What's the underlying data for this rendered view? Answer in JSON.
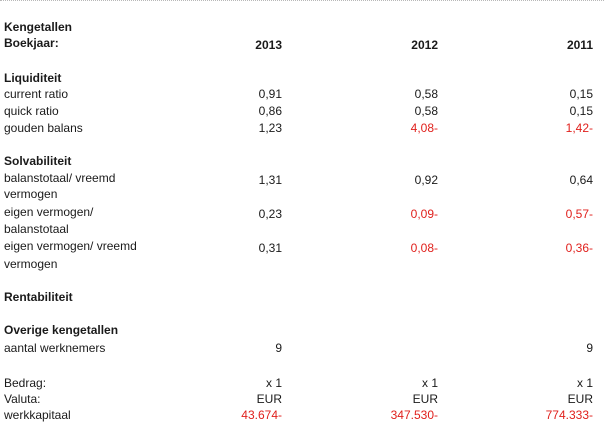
{
  "header": {
    "title": "Kengetallen",
    "year_label": "Boekjaar:",
    "years": [
      "2013",
      "2012",
      "2011"
    ]
  },
  "liquiditeit": {
    "heading": "Liquiditeit",
    "rows": [
      {
        "label": "current ratio",
        "values": [
          "0,91",
          "0,58",
          "0,15"
        ]
      },
      {
        "label": "quick ratio",
        "values": [
          "0,86",
          "0,58",
          "0,15"
        ]
      },
      {
        "label": "gouden balans",
        "values": [
          "1,23",
          "4,08-",
          "1,42-"
        ]
      }
    ]
  },
  "solvabiliteit": {
    "heading": "Solvabiliteit",
    "rows": [
      {
        "label1": "balanstotaal/ vreemd",
        "label2": "vermogen",
        "values": [
          "1,31",
          "0,92",
          "0,64"
        ]
      },
      {
        "label1": "eigen vermogen/",
        "label2": "balanstotaal",
        "values": [
          "0,23",
          "0,09-",
          "0,57-"
        ]
      },
      {
        "label1": "eigen vermogen/ vreemd",
        "label2": "vermogen",
        "values": [
          "0,31",
          "0,08-",
          "0,36-"
        ]
      }
    ]
  },
  "rentabiliteit": {
    "heading": "Rentabiliteit"
  },
  "overige": {
    "heading": "Overige kengetallen",
    "rows": [
      {
        "label": "aantal werknemers",
        "values": [
          "9",
          "",
          "9"
        ]
      }
    ]
  },
  "footer": {
    "rows": [
      {
        "label": "Bedrag:",
        "values": [
          "x 1",
          "x 1",
          "x 1"
        ]
      },
      {
        "label": "Valuta:",
        "values": [
          "EUR",
          "EUR",
          "EUR"
        ]
      },
      {
        "label": "werkkapitaal",
        "values": [
          "43.674-",
          "347.530-",
          "774.333-"
        ]
      }
    ]
  },
  "colors": {
    "negative": "#e0201c",
    "text": "#1a1a1a"
  }
}
